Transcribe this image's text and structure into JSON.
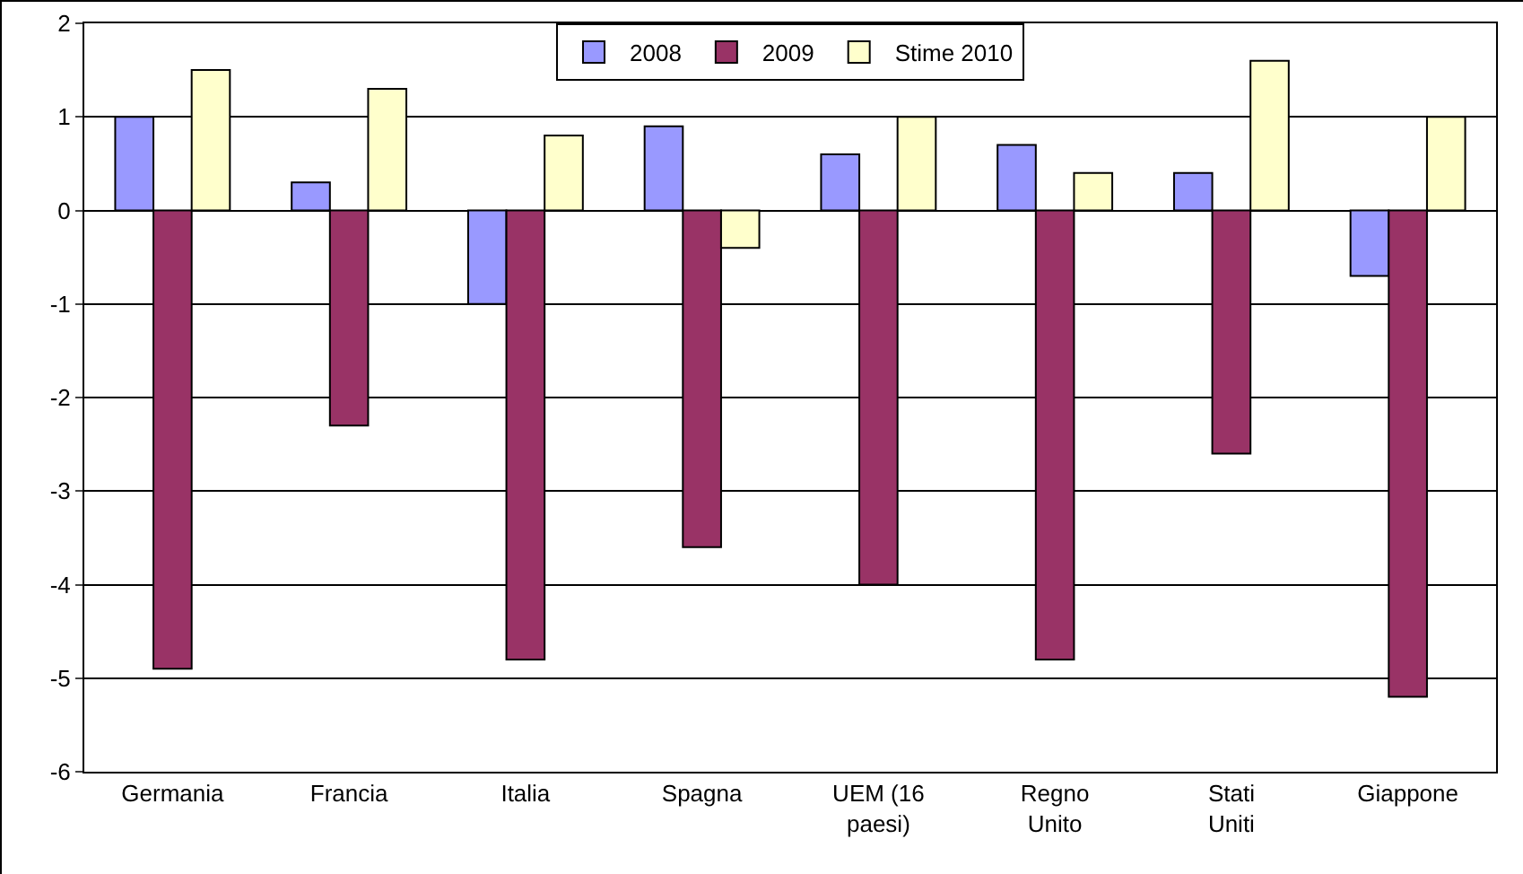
{
  "chart_data": {
    "type": "bar",
    "categories": [
      "Germania",
      "Francia",
      "Italia",
      "Spagna",
      "UEM (16 paesi)",
      "Regno Unito",
      "Stati Uniti",
      "Giappone"
    ],
    "series": [
      {
        "name": "2008",
        "color": "#9999ff",
        "values": [
          1.0,
          0.3,
          -1.0,
          0.9,
          0.6,
          0.7,
          0.4,
          -0.7
        ]
      },
      {
        "name": "2009",
        "color": "#993366",
        "values": [
          -4.9,
          -2.3,
          -4.8,
          -3.6,
          -4.0,
          -4.8,
          -2.6,
          -5.2
        ]
      },
      {
        "name": "Stime 2010",
        "color": "#ffffcc",
        "values": [
          1.5,
          1.3,
          0.8,
          -0.4,
          1.0,
          0.4,
          1.6,
          1.0
        ]
      }
    ],
    "ylim": [
      -6,
      2
    ],
    "yticks": [
      -6,
      -5,
      -4,
      -3,
      -2,
      -1,
      0,
      1,
      2
    ],
    "grid": "y",
    "legend": "top"
  }
}
